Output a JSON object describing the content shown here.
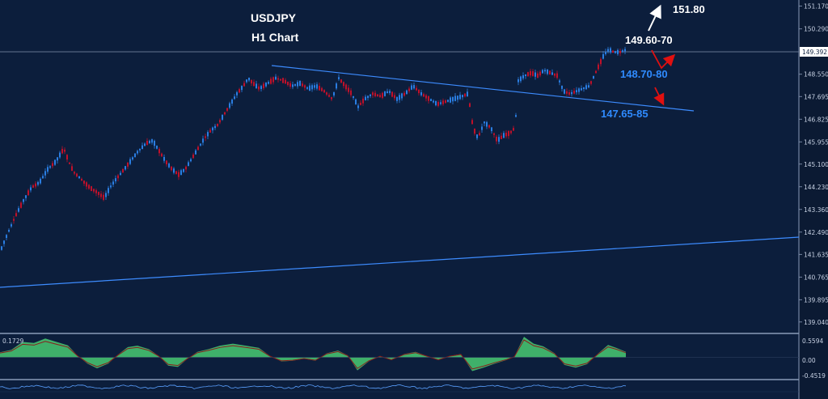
{
  "chart_data": [
    {
      "type": "candlestick",
      "title": "USDJPY",
      "subtitle": "H1 Chart",
      "ylim": [
        138.6,
        151.4
      ],
      "yticks": [
        "151.170",
        "150.290",
        "148.550",
        "147.695",
        "146.825",
        "145.955",
        "145.100",
        "144.230",
        "143.360",
        "142.490",
        "141.635",
        "140.765",
        "139.895",
        "139.040"
      ],
      "current_price": "149.392",
      "annotations": [
        {
          "text": "151.80",
          "color": "#ffffff"
        },
        {
          "text": "149.60-70",
          "color": "#ffffff"
        },
        {
          "text": "148.70-80",
          "color": "#2f8bff"
        },
        {
          "text": "147.65-85",
          "color": "#2f8bff"
        }
      ],
      "path": [
        [
          0,
          141.8
        ],
        [
          8,
          142.4
        ],
        [
          18,
          143.1
        ],
        [
          28,
          143.7
        ],
        [
          38,
          144.2
        ],
        [
          48,
          144.4
        ],
        [
          58,
          144.9
        ],
        [
          68,
          145.2
        ],
        [
          78,
          145.7
        ],
        [
          84,
          145.2
        ],
        [
          90,
          144.8
        ],
        [
          100,
          144.5
        ],
        [
          110,
          144.2
        ],
        [
          120,
          144.0
        ],
        [
          128,
          143.8
        ],
        [
          135,
          144.2
        ],
        [
          142,
          144.5
        ],
        [
          150,
          144.8
        ],
        [
          160,
          145.2
        ],
        [
          170,
          145.6
        ],
        [
          180,
          145.9
        ],
        [
          188,
          146.0
        ],
        [
          196,
          145.6
        ],
        [
          204,
          145.2
        ],
        [
          212,
          144.9
        ],
        [
          220,
          144.7
        ],
        [
          228,
          144.9
        ],
        [
          236,
          145.3
        ],
        [
          244,
          145.7
        ],
        [
          252,
          146.1
        ],
        [
          260,
          146.4
        ],
        [
          268,
          146.6
        ],
        [
          276,
          147.0
        ],
        [
          284,
          147.4
        ],
        [
          292,
          147.8
        ],
        [
          300,
          148.1
        ],
        [
          306,
          148.4
        ],
        [
          312,
          148.2
        ],
        [
          320,
          148.0
        ],
        [
          330,
          148.2
        ],
        [
          340,
          148.4
        ],
        [
          350,
          148.3
        ],
        [
          360,
          148.1
        ],
        [
          370,
          148.2
        ],
        [
          380,
          148.0
        ],
        [
          390,
          148.1
        ],
        [
          400,
          147.9
        ],
        [
          410,
          147.6
        ],
        [
          418,
          148.4
        ],
        [
          426,
          148.1
        ],
        [
          434,
          147.8
        ],
        [
          442,
          147.3
        ],
        [
          450,
          147.6
        ],
        [
          460,
          147.8
        ],
        [
          470,
          147.7
        ],
        [
          480,
          147.9
        ],
        [
          490,
          147.6
        ],
        [
          500,
          147.8
        ],
        [
          510,
          148.1
        ],
        [
          520,
          147.8
        ],
        [
          530,
          147.6
        ],
        [
          540,
          147.4
        ],
        [
          550,
          147.5
        ],
        [
          560,
          147.6
        ],
        [
          570,
          147.7
        ],
        [
          578,
          147.8
        ],
        [
          584,
          146.5
        ],
        [
          590,
          146.1
        ],
        [
          598,
          146.7
        ],
        [
          606,
          146.5
        ],
        [
          614,
          146.0
        ],
        [
          622,
          146.2
        ],
        [
          630,
          146.3
        ],
        [
          636,
          146.5
        ],
        [
          640,
          148.3
        ],
        [
          648,
          148.5
        ],
        [
          656,
          148.6
        ],
        [
          664,
          148.5
        ],
        [
          672,
          148.7
        ],
        [
          680,
          148.6
        ],
        [
          688,
          148.5
        ],
        [
          696,
          147.9
        ],
        [
          704,
          147.8
        ],
        [
          712,
          147.9
        ],
        [
          720,
          148.0
        ],
        [
          728,
          148.1
        ],
        [
          734,
          148.5
        ],
        [
          740,
          148.9
        ],
        [
          746,
          149.3
        ],
        [
          752,
          149.5
        ],
        [
          758,
          149.4
        ],
        [
          766,
          149.4
        ],
        [
          774,
          149.5
        ]
      ]
    },
    {
      "type": "area",
      "title": "",
      "ylim": [
        -0.6,
        0.65
      ],
      "yticks": [
        "0.5594",
        "0.00",
        "-0.4519"
      ],
      "value_label": "0.1729",
      "path": [
        [
          0,
          0.15
        ],
        [
          14,
          0.22
        ],
        [
          28,
          0.45
        ],
        [
          42,
          0.42
        ],
        [
          56,
          0.55
        ],
        [
          70,
          0.45
        ],
        [
          84,
          0.35
        ],
        [
          96,
          0.05
        ],
        [
          108,
          -0.18
        ],
        [
          120,
          -0.32
        ],
        [
          134,
          -0.18
        ],
        [
          146,
          0.08
        ],
        [
          158,
          0.3
        ],
        [
          170,
          0.34
        ],
        [
          184,
          0.24
        ],
        [
          196,
          0.05
        ],
        [
          208,
          -0.24
        ],
        [
          220,
          -0.28
        ],
        [
          232,
          -0.04
        ],
        [
          244,
          0.16
        ],
        [
          258,
          0.24
        ],
        [
          272,
          0.34
        ],
        [
          288,
          0.4
        ],
        [
          304,
          0.34
        ],
        [
          320,
          0.28
        ],
        [
          334,
          0.04
        ],
        [
          348,
          -0.12
        ],
        [
          362,
          -0.1
        ],
        [
          376,
          -0.04
        ],
        [
          390,
          -0.1
        ],
        [
          404,
          0.12
        ],
        [
          418,
          0.2
        ],
        [
          430,
          0.06
        ],
        [
          442,
          -0.38
        ],
        [
          456,
          -0.12
        ],
        [
          470,
          0.04
        ],
        [
          484,
          -0.08
        ],
        [
          500,
          0.1
        ],
        [
          514,
          0.16
        ],
        [
          528,
          0.04
        ],
        [
          542,
          -0.08
        ],
        [
          556,
          0.04
        ],
        [
          570,
          0.1
        ],
        [
          584,
          -0.4
        ],
        [
          598,
          -0.3
        ],
        [
          612,
          -0.18
        ],
        [
          626,
          -0.08
        ],
        [
          636,
          0.02
        ],
        [
          648,
          0.6
        ],
        [
          660,
          0.4
        ],
        [
          672,
          0.32
        ],
        [
          686,
          0.12
        ],
        [
          698,
          -0.22
        ],
        [
          712,
          -0.3
        ],
        [
          726,
          -0.2
        ],
        [
          740,
          0.12
        ],
        [
          752,
          0.36
        ],
        [
          762,
          0.28
        ],
        [
          774,
          0.16
        ]
      ]
    }
  ]
}
